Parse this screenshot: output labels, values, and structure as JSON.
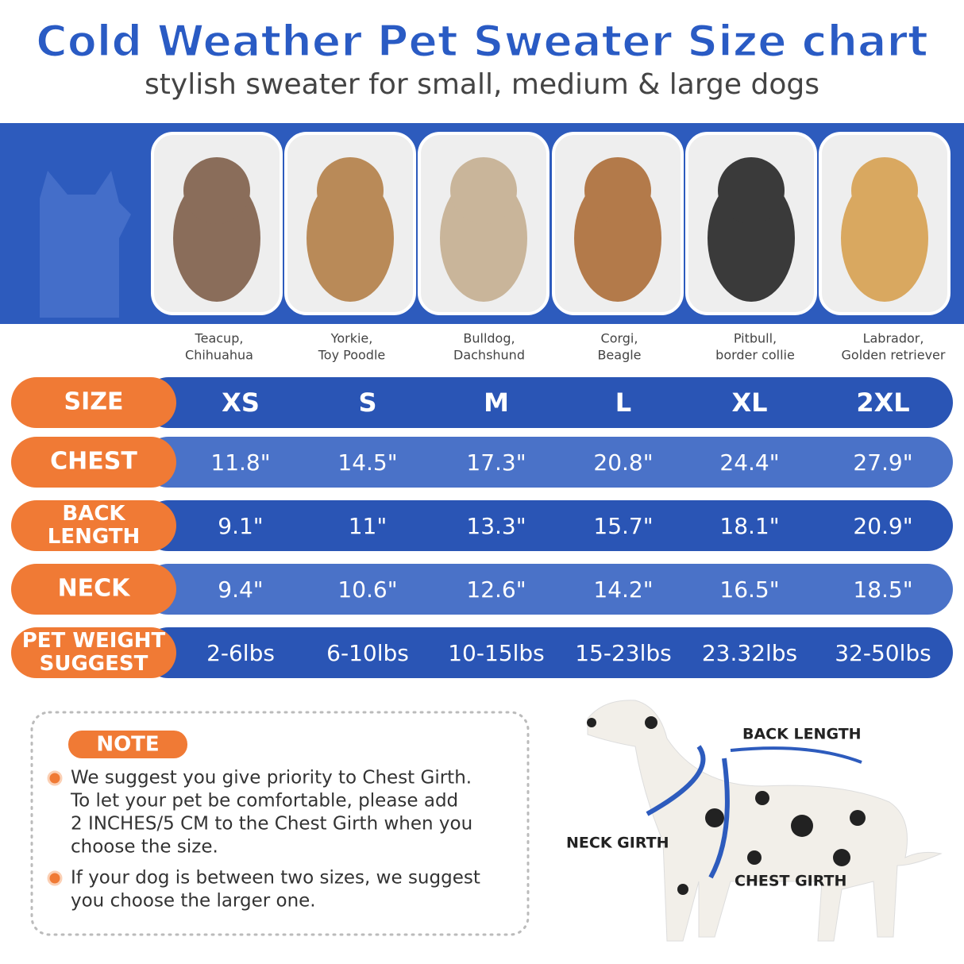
{
  "header": {
    "title": "Cold Weather Pet Sweater Size chart",
    "subtitle": "stylish sweater for small, medium & large dogs"
  },
  "breeds": [
    [
      "Teacup,",
      "Chihuahua"
    ],
    [
      "Yorkie,",
      "Toy Poodle"
    ],
    [
      "Bulldog,",
      "Dachshund"
    ],
    [
      "Corgi,",
      "Beagle"
    ],
    [
      "Pitbull,",
      "border collie"
    ],
    [
      "Labrador,",
      "Golden retriever"
    ]
  ],
  "table": {
    "rows": [
      {
        "label": [
          "SIZE"
        ],
        "cells": [
          "XS",
          "S",
          "M",
          "L",
          "XL",
          "2XL"
        ]
      },
      {
        "label": [
          "CHEST"
        ],
        "cells": [
          "11.8\"",
          "14.5\"",
          "17.3\"",
          "20.8\"",
          "24.4\"",
          "27.9\""
        ]
      },
      {
        "label": [
          "BACK",
          "LENGTH"
        ],
        "cells": [
          "9.1\"",
          "11\"",
          "13.3\"",
          "15.7\"",
          "18.1\"",
          "20.9\""
        ]
      },
      {
        "label": [
          "NECK"
        ],
        "cells": [
          "9.4\"",
          "10.6\"",
          "12.6\"",
          "14.2\"",
          "16.5\"",
          "18.5\""
        ]
      },
      {
        "label": [
          "PET WEIGHT",
          "SUGGEST"
        ],
        "cells": [
          "2-6lbs",
          "6-10lbs",
          "10-15lbs",
          "15-23lbs",
          "23.32lbs",
          "32-50lbs"
        ]
      }
    ]
  },
  "note": {
    "heading": "NOTE",
    "items": [
      [
        "We suggest you give priority to Chest Girth.",
        "To let your pet be comfortable, please add",
        "2 INCHES/5 CM to the Chest Girth when you",
        "choose the size."
      ],
      [
        "If your dog is between two sizes, we suggest",
        "you choose the larger one."
      ]
    ]
  },
  "diagram": {
    "labels": [
      "BACK LENGTH",
      "NECK GIRTH",
      "CHEST GIRTH"
    ]
  }
}
